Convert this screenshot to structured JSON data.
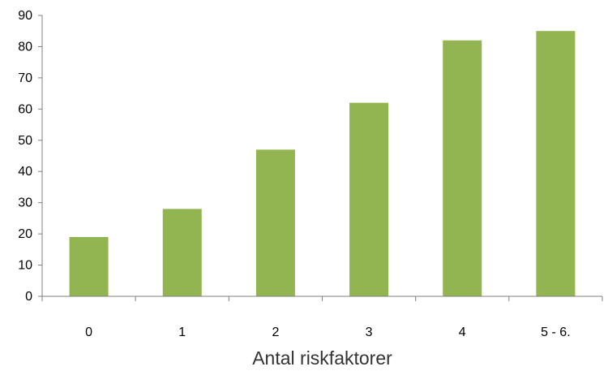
{
  "chart_data": {
    "type": "bar",
    "title": "",
    "xlabel": "Antal riskfaktorer",
    "ylabel": "",
    "categories": [
      "0",
      "1",
      "2",
      "3",
      "4",
      "5 - 6."
    ],
    "values": [
      19,
      28,
      47,
      62,
      82,
      85
    ],
    "ylim": [
      0,
      90
    ],
    "yticks": [
      0,
      10,
      20,
      30,
      40,
      50,
      60,
      70,
      80,
      90
    ],
    "grid": false,
    "legend": "none",
    "colors": {
      "bar": "#92b551",
      "axis": "#808080"
    }
  }
}
